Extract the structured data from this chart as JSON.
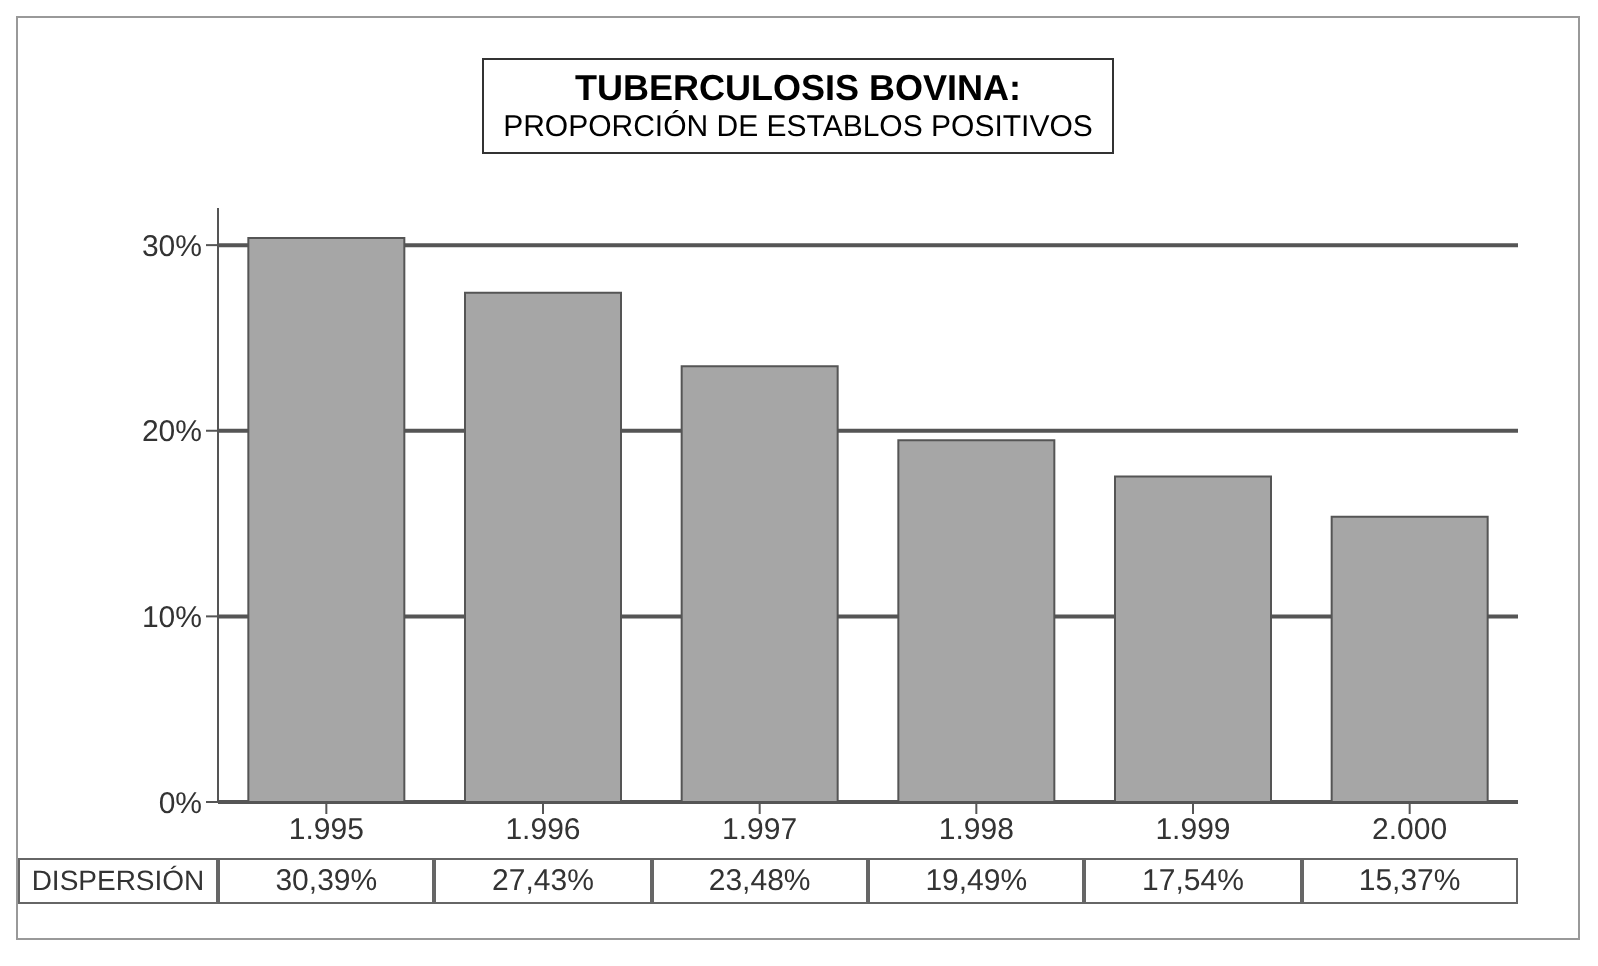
{
  "chart_data": {
    "type": "bar",
    "title": "TUBERCULOSIS BOVINA:",
    "subtitle": "PROPORCIÓN DE ESTABLOS POSITIVOS",
    "categories": [
      "1.995",
      "1.996",
      "1.997",
      "1.998",
      "1.999",
      "2.000"
    ],
    "series": [
      {
        "name": "DISPERSIÓN",
        "color": "#a6a6a6",
        "values": [
          30.39,
          27.43,
          23.48,
          19.49,
          17.54,
          15.37
        ],
        "value_labels": [
          "30,39%",
          "27,43%",
          "23,48%",
          "19,49%",
          "17,54%",
          "15,37%"
        ]
      }
    ],
    "ylim": [
      0,
      32
    ],
    "yticks": [
      {
        "value": 0,
        "label": "0%"
      },
      {
        "value": 10,
        "label": "10%"
      },
      {
        "value": 20,
        "label": "20%"
      },
      {
        "value": 30,
        "label": "30%"
      }
    ],
    "grid": "y"
  }
}
